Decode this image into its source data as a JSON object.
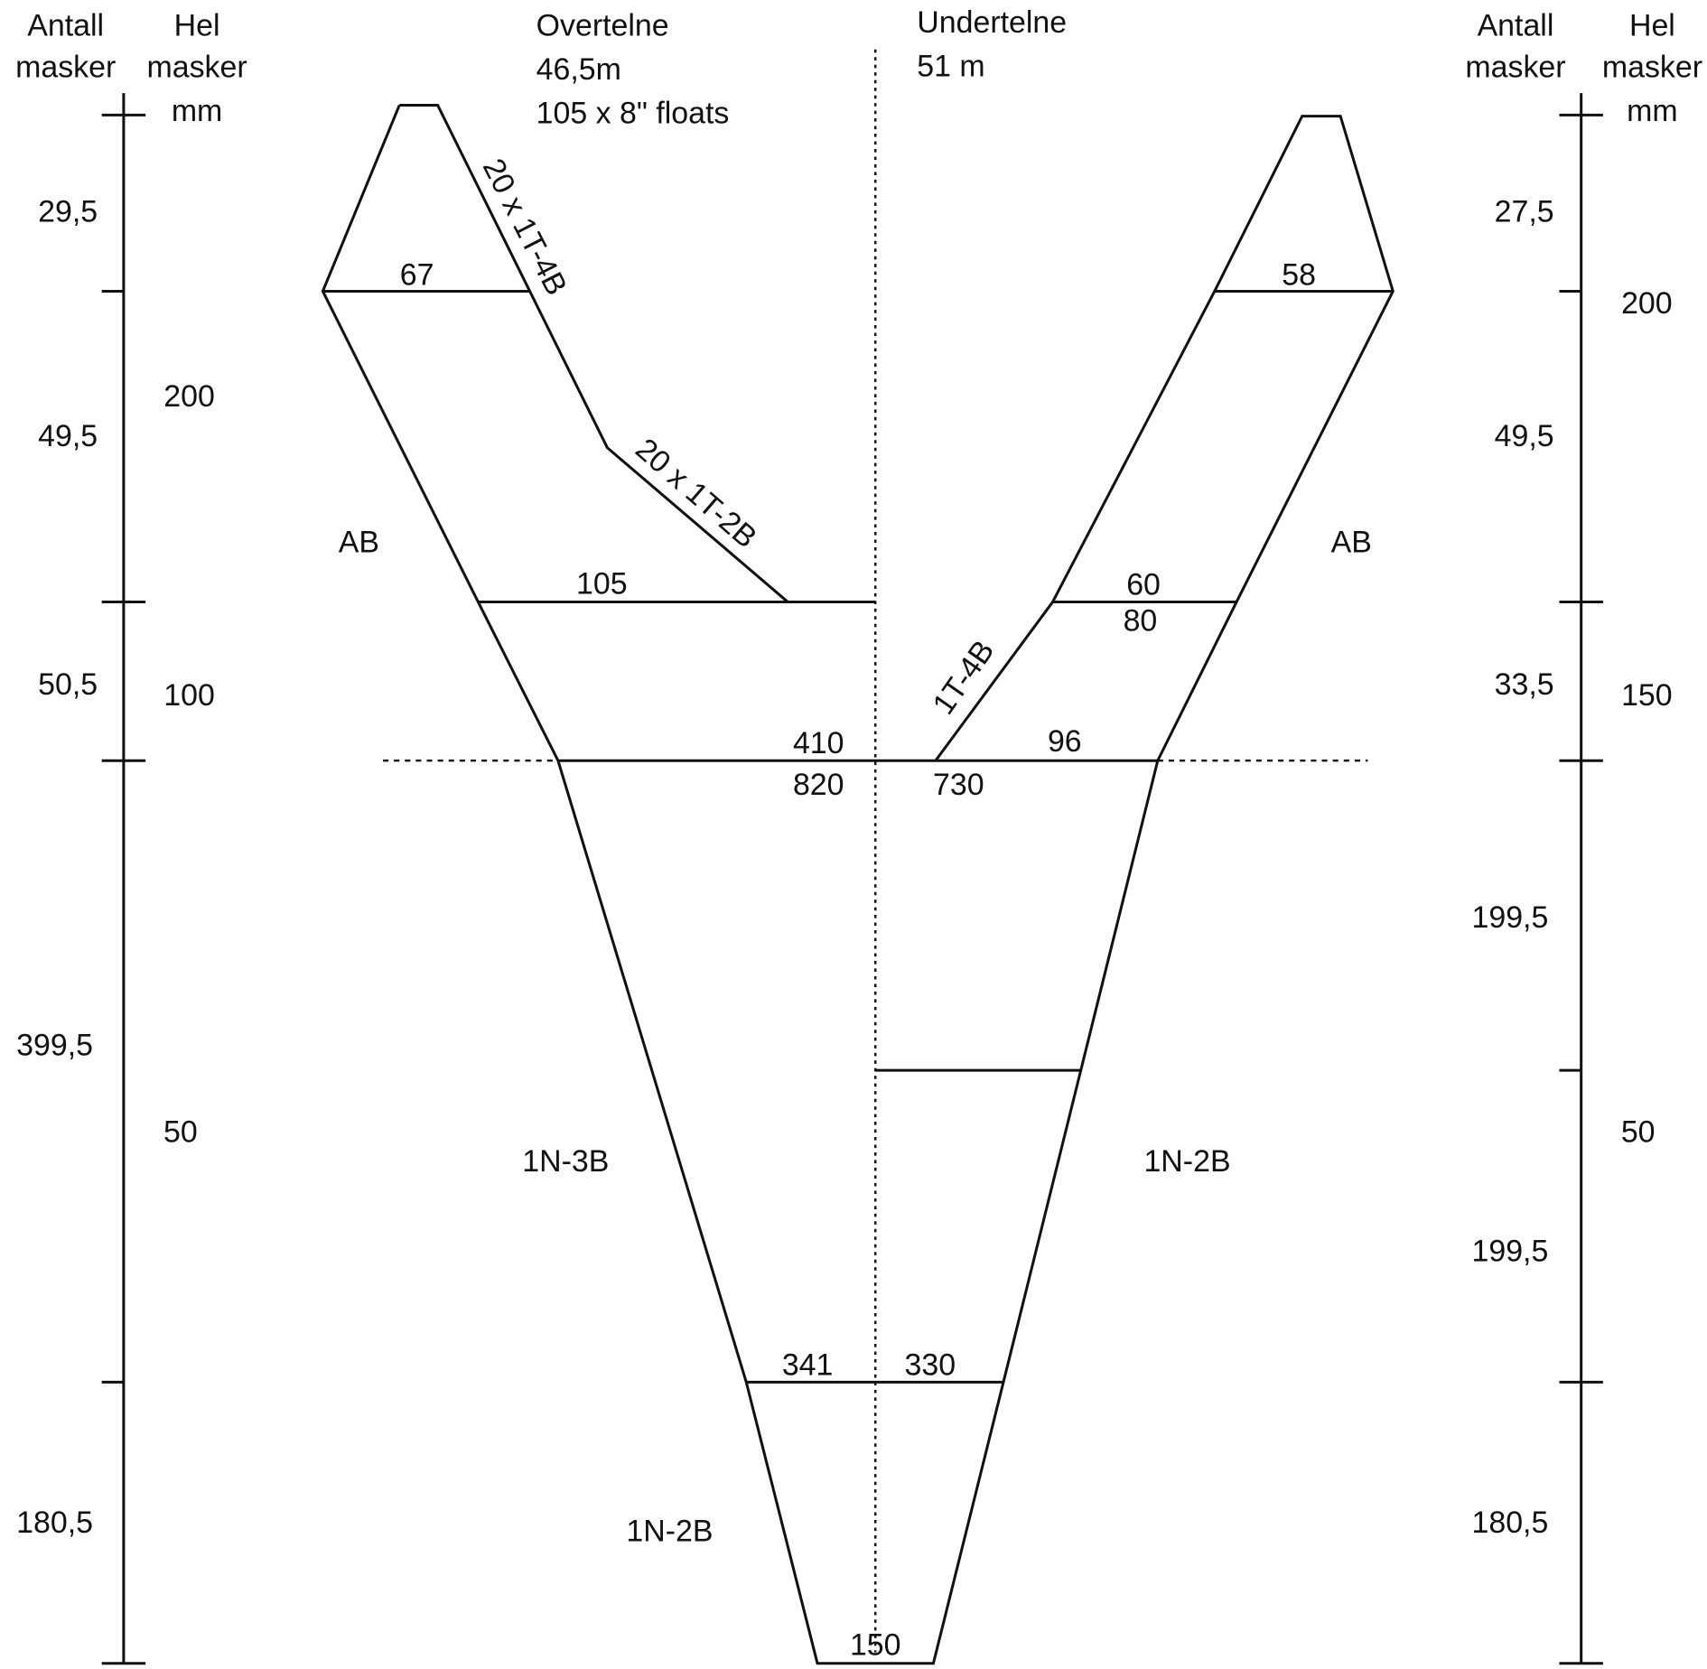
{
  "left_scale": {
    "count_header": [
      "Antall",
      "masker"
    ],
    "mesh_header": [
      "Hel",
      "masker",
      "mm"
    ],
    "counts": [
      "29,5",
      "49,5",
      "50,5",
      "399,5",
      "180,5"
    ],
    "meshes": [
      "200",
      "100",
      "50"
    ]
  },
  "right_scale": {
    "count_header": [
      "Antall",
      "masker"
    ],
    "mesh_header": [
      "Hel",
      "masker",
      "mm"
    ],
    "counts": [
      "27,5",
      "49,5",
      "33,5",
      "199,5",
      "199,5",
      "180,5"
    ],
    "meshes": [
      "200",
      "150",
      "50"
    ]
  },
  "top_panel": {
    "title": "Overtelne",
    "length": "46,5m",
    "floats": "105 x 8\" floats"
  },
  "bottom_panel": {
    "title": "Undertelne",
    "length": "51 m"
  },
  "labels": [
    "67",
    "20 x 1T-4B",
    "20 x 1T-2B",
    "105",
    "AB",
    "410",
    "820",
    "730",
    "96",
    "60",
    "80",
    "1T-4B",
    "58",
    "AB",
    "1N-3B",
    "1N-2B",
    "341",
    "330",
    "1N-2B",
    "150"
  ]
}
